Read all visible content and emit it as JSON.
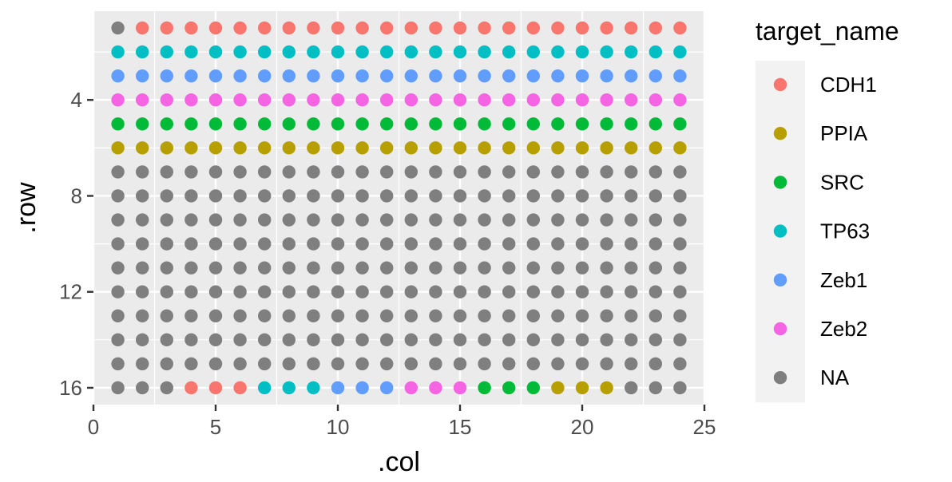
{
  "chart_data": {
    "type": "scatter",
    "xlabel": ".col",
    "ylabel": ".row",
    "xlim": [
      0,
      25
    ],
    "ylim": [
      16.7,
      0.3
    ],
    "y_reversed": true,
    "x_ticks": [
      0,
      5,
      10,
      15,
      20,
      25
    ],
    "y_ticks": [
      4,
      8,
      12,
      16
    ],
    "grid": true,
    "legend_position": "right",
    "legend": {
      "title": "target_name",
      "entries": [
        {
          "name": "CDH1",
          "color": "#F8766D"
        },
        {
          "name": "PPIA",
          "color": "#B79F00"
        },
        {
          "name": "SRC",
          "color": "#00BA38"
        },
        {
          "name": "TP63",
          "color": "#00BFC4"
        },
        {
          "name": "Zeb1",
          "color": "#619CFF"
        },
        {
          "name": "Zeb2",
          "color": "#F564E3"
        },
        {
          "name": "NA",
          "color": "#7F7F7F"
        }
      ]
    },
    "columns": [
      1,
      2,
      3,
      4,
      5,
      6,
      7,
      8,
      9,
      10,
      11,
      12,
      13,
      14,
      15,
      16,
      17,
      18,
      19,
      20,
      21,
      22,
      23,
      24
    ],
    "rows": [
      {
        "row": 1,
        "targets": [
          "NA",
          "CDH1",
          "CDH1",
          "CDH1",
          "CDH1",
          "CDH1",
          "CDH1",
          "CDH1",
          "CDH1",
          "CDH1",
          "CDH1",
          "CDH1",
          "CDH1",
          "CDH1",
          "CDH1",
          "CDH1",
          "CDH1",
          "CDH1",
          "CDH1",
          "CDH1",
          "CDH1",
          "CDH1",
          "CDH1",
          "CDH1"
        ]
      },
      {
        "row": 2,
        "targets": [
          "TP63",
          "TP63",
          "TP63",
          "TP63",
          "TP63",
          "TP63",
          "TP63",
          "TP63",
          "TP63",
          "TP63",
          "TP63",
          "TP63",
          "TP63",
          "TP63",
          "TP63",
          "TP63",
          "TP63",
          "TP63",
          "TP63",
          "TP63",
          "TP63",
          "TP63",
          "TP63",
          "TP63"
        ]
      },
      {
        "row": 3,
        "targets": [
          "Zeb1",
          "Zeb1",
          "Zeb1",
          "Zeb1",
          "Zeb1",
          "Zeb1",
          "Zeb1",
          "Zeb1",
          "Zeb1",
          "Zeb1",
          "Zeb1",
          "Zeb1",
          "Zeb1",
          "Zeb1",
          "Zeb1",
          "Zeb1",
          "Zeb1",
          "Zeb1",
          "Zeb1",
          "Zeb1",
          "Zeb1",
          "Zeb1",
          "Zeb1",
          "Zeb1"
        ]
      },
      {
        "row": 4,
        "targets": [
          "Zeb2",
          "Zeb2",
          "Zeb2",
          "Zeb2",
          "Zeb2",
          "Zeb2",
          "Zeb2",
          "Zeb2",
          "Zeb2",
          "Zeb2",
          "Zeb2",
          "Zeb2",
          "Zeb2",
          "Zeb2",
          "Zeb2",
          "Zeb2",
          "Zeb2",
          "Zeb2",
          "Zeb2",
          "Zeb2",
          "Zeb2",
          "Zeb2",
          "Zeb2",
          "Zeb2"
        ]
      },
      {
        "row": 5,
        "targets": [
          "SRC",
          "SRC",
          "SRC",
          "SRC",
          "SRC",
          "SRC",
          "SRC",
          "SRC",
          "SRC",
          "SRC",
          "SRC",
          "SRC",
          "SRC",
          "SRC",
          "SRC",
          "SRC",
          "SRC",
          "SRC",
          "SRC",
          "SRC",
          "SRC",
          "SRC",
          "SRC",
          "SRC"
        ]
      },
      {
        "row": 6,
        "targets": [
          "PPIA",
          "PPIA",
          "PPIA",
          "PPIA",
          "PPIA",
          "PPIA",
          "PPIA",
          "PPIA",
          "PPIA",
          "PPIA",
          "PPIA",
          "PPIA",
          "PPIA",
          "PPIA",
          "PPIA",
          "PPIA",
          "PPIA",
          "PPIA",
          "PPIA",
          "PPIA",
          "PPIA",
          "PPIA",
          "PPIA",
          "PPIA"
        ]
      },
      {
        "row": 7,
        "targets": [
          "NA",
          "NA",
          "NA",
          "NA",
          "NA",
          "NA",
          "NA",
          "NA",
          "NA",
          "NA",
          "NA",
          "NA",
          "NA",
          "NA",
          "NA",
          "NA",
          "NA",
          "NA",
          "NA",
          "NA",
          "NA",
          "NA",
          "NA",
          "NA"
        ]
      },
      {
        "row": 8,
        "targets": [
          "NA",
          "NA",
          "NA",
          "NA",
          "NA",
          "NA",
          "NA",
          "NA",
          "NA",
          "NA",
          "NA",
          "NA",
          "NA",
          "NA",
          "NA",
          "NA",
          "NA",
          "NA",
          "NA",
          "NA",
          "NA",
          "NA",
          "NA",
          "NA"
        ]
      },
      {
        "row": 9,
        "targets": [
          "NA",
          "NA",
          "NA",
          "NA",
          "NA",
          "NA",
          "NA",
          "NA",
          "NA",
          "NA",
          "NA",
          "NA",
          "NA",
          "NA",
          "NA",
          "NA",
          "NA",
          "NA",
          "NA",
          "NA",
          "NA",
          "NA",
          "NA",
          "NA"
        ]
      },
      {
        "row": 10,
        "targets": [
          "NA",
          "NA",
          "NA",
          "NA",
          "NA",
          "NA",
          "NA",
          "NA",
          "NA",
          "NA",
          "NA",
          "NA",
          "NA",
          "NA",
          "NA",
          "NA",
          "NA",
          "NA",
          "NA",
          "NA",
          "NA",
          "NA",
          "NA",
          "NA"
        ]
      },
      {
        "row": 11,
        "targets": [
          "NA",
          "NA",
          "NA",
          "NA",
          "NA",
          "NA",
          "NA",
          "NA",
          "NA",
          "NA",
          "NA",
          "NA",
          "NA",
          "NA",
          "NA",
          "NA",
          "NA",
          "NA",
          "NA",
          "NA",
          "NA",
          "NA",
          "NA",
          "NA"
        ]
      },
      {
        "row": 12,
        "targets": [
          "NA",
          "NA",
          "NA",
          "NA",
          "NA",
          "NA",
          "NA",
          "NA",
          "NA",
          "NA",
          "NA",
          "NA",
          "NA",
          "NA",
          "NA",
          "NA",
          "NA",
          "NA",
          "NA",
          "NA",
          "NA",
          "NA",
          "NA",
          "NA"
        ]
      },
      {
        "row": 13,
        "targets": [
          "NA",
          "NA",
          "NA",
          "NA",
          "NA",
          "NA",
          "NA",
          "NA",
          "NA",
          "NA",
          "NA",
          "NA",
          "NA",
          "NA",
          "NA",
          "NA",
          "NA",
          "NA",
          "NA",
          "NA",
          "NA",
          "NA",
          "NA",
          "NA"
        ]
      },
      {
        "row": 14,
        "targets": [
          "NA",
          "NA",
          "NA",
          "NA",
          "NA",
          "NA",
          "NA",
          "NA",
          "NA",
          "NA",
          "NA",
          "NA",
          "NA",
          "NA",
          "NA",
          "NA",
          "NA",
          "NA",
          "NA",
          "NA",
          "NA",
          "NA",
          "NA",
          "NA"
        ]
      },
      {
        "row": 15,
        "targets": [
          "NA",
          "NA",
          "NA",
          "NA",
          "NA",
          "NA",
          "NA",
          "NA",
          "NA",
          "NA",
          "NA",
          "NA",
          "NA",
          "NA",
          "NA",
          "NA",
          "NA",
          "NA",
          "NA",
          "NA",
          "NA",
          "NA",
          "NA",
          "NA"
        ]
      },
      {
        "row": 16,
        "targets": [
          "NA",
          "NA",
          "NA",
          "CDH1",
          "CDH1",
          "CDH1",
          "TP63",
          "TP63",
          "TP63",
          "Zeb1",
          "Zeb1",
          "Zeb1",
          "Zeb2",
          "Zeb2",
          "Zeb2",
          "SRC",
          "SRC",
          "SRC",
          "PPIA",
          "PPIA",
          "PPIA",
          "NA",
          "NA",
          "NA"
        ]
      }
    ]
  }
}
